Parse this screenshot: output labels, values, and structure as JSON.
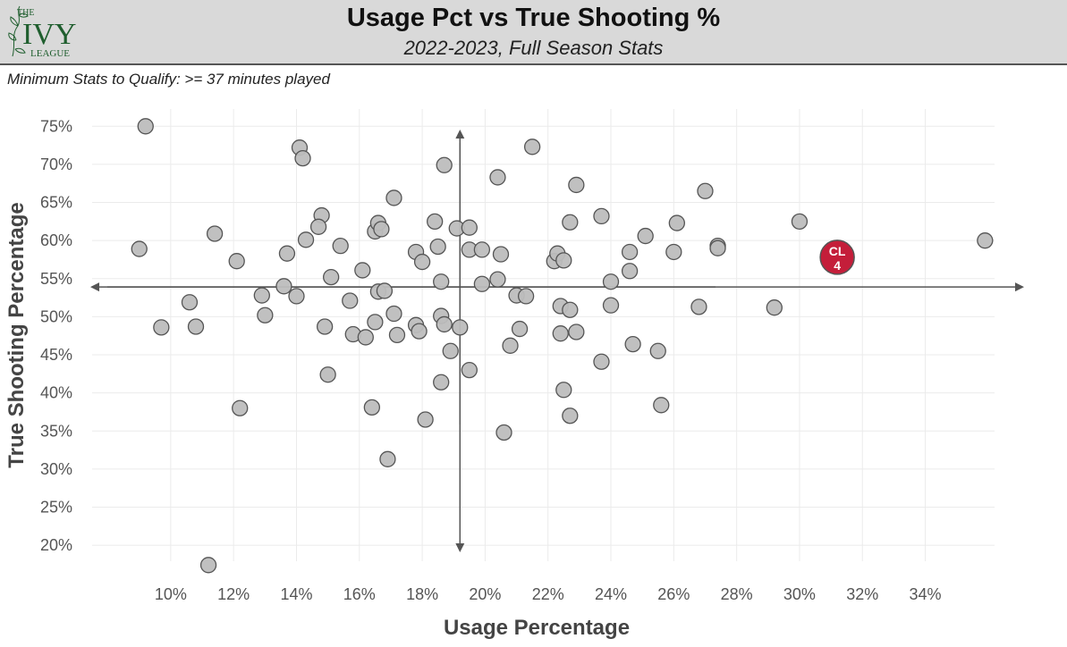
{
  "header": {
    "title": "Usage Pct vs True Shooting %",
    "subtitle": "2022-2023, Full Season Stats",
    "logo": {
      "top": "THE",
      "main": "IVY",
      "bottom": "LEAGUE"
    }
  },
  "note": "Minimum Stats to Qualify: >= 37 minutes played",
  "colors": {
    "point_fill": "#bdbdbd",
    "point_stroke": "#555555",
    "highlight_fill": "#c41e3a",
    "logo_green": "#1f5e2e"
  },
  "chart_data": {
    "type": "scatter",
    "xlabel": "Usage Percentage",
    "ylabel": "True Shooting Percentage",
    "x_unit": "percent",
    "y_unit": "percent",
    "xlim": [
      7.5,
      37
    ],
    "ylim": [
      16.5,
      77.5
    ],
    "x_ticks": [
      "10%",
      "12%",
      "14%",
      "16%",
      "18%",
      "20%",
      "22%",
      "24%",
      "26%",
      "28%",
      "30%",
      "32%",
      "34%"
    ],
    "y_ticks": [
      "20%",
      "25%",
      "30%",
      "35%",
      "40%",
      "45%",
      "50%",
      "55%",
      "60%",
      "65%",
      "70%",
      "75%"
    ],
    "grid": true,
    "reference_lines": {
      "x": 19.2,
      "y": 53.9
    },
    "points": [
      [
        9.2,
        75.0
      ],
      [
        9.0,
        58.9
      ],
      [
        9.7,
        48.6
      ],
      [
        10.6,
        51.9
      ],
      [
        10.8,
        48.7
      ],
      [
        11.2,
        17.4
      ],
      [
        11.4,
        60.9
      ],
      [
        12.1,
        57.3
      ],
      [
        12.2,
        38.0
      ],
      [
        12.9,
        52.8
      ],
      [
        13.0,
        50.2
      ],
      [
        13.7,
        58.3
      ],
      [
        13.6,
        54.0
      ],
      [
        14.0,
        52.7
      ],
      [
        14.1,
        72.2
      ],
      [
        14.2,
        70.8
      ],
      [
        14.3,
        60.1
      ],
      [
        14.8,
        63.3
      ],
      [
        14.7,
        61.8
      ],
      [
        14.9,
        48.7
      ],
      [
        15.0,
        42.4
      ],
      [
        15.1,
        55.2
      ],
      [
        15.4,
        59.3
      ],
      [
        15.7,
        52.1
      ],
      [
        15.8,
        47.7
      ],
      [
        16.1,
        56.1
      ],
      [
        16.2,
        47.3
      ],
      [
        16.4,
        38.1
      ],
      [
        16.5,
        61.2
      ],
      [
        16.6,
        62.3
      ],
      [
        16.7,
        61.5
      ],
      [
        16.6,
        53.3
      ],
      [
        16.5,
        49.3
      ],
      [
        16.8,
        53.4
      ],
      [
        16.9,
        31.3
      ],
      [
        17.1,
        65.6
      ],
      [
        17.1,
        50.4
      ],
      [
        17.2,
        47.6
      ],
      [
        17.8,
        58.5
      ],
      [
        17.8,
        48.9
      ],
      [
        17.9,
        48.1
      ],
      [
        18.0,
        57.2
      ],
      [
        18.1,
        36.5
      ],
      [
        18.4,
        62.5
      ],
      [
        18.5,
        59.2
      ],
      [
        18.6,
        54.6
      ],
      [
        18.6,
        50.1
      ],
      [
        18.7,
        49.0
      ],
      [
        18.6,
        41.4
      ],
      [
        18.7,
        69.9
      ],
      [
        18.9,
        45.5
      ],
      [
        19.1,
        61.6
      ],
      [
        19.2,
        48.6
      ],
      [
        19.5,
        61.7
      ],
      [
        19.5,
        58.8
      ],
      [
        19.5,
        43.0
      ],
      [
        19.9,
        58.8
      ],
      [
        19.9,
        54.3
      ],
      [
        20.4,
        68.3
      ],
      [
        20.4,
        54.9
      ],
      [
        20.5,
        58.2
      ],
      [
        20.6,
        34.8
      ],
      [
        20.8,
        46.2
      ],
      [
        21.0,
        52.8
      ],
      [
        21.1,
        48.4
      ],
      [
        21.3,
        52.7
      ],
      [
        21.5,
        72.3
      ],
      [
        22.2,
        57.3
      ],
      [
        22.3,
        58.3
      ],
      [
        22.4,
        51.4
      ],
      [
        22.4,
        47.8
      ],
      [
        22.5,
        57.4
      ],
      [
        22.5,
        40.4
      ],
      [
        22.7,
        62.4
      ],
      [
        22.7,
        50.9
      ],
      [
        22.7,
        37.0
      ],
      [
        22.9,
        67.3
      ],
      [
        22.9,
        48.0
      ],
      [
        23.7,
        63.2
      ],
      [
        23.7,
        44.1
      ],
      [
        24.0,
        54.6
      ],
      [
        24.0,
        51.5
      ],
      [
        24.6,
        58.5
      ],
      [
        24.6,
        56.0
      ],
      [
        24.7,
        46.4
      ],
      [
        25.1,
        60.6
      ],
      [
        25.5,
        45.5
      ],
      [
        25.6,
        38.4
      ],
      [
        26.0,
        58.5
      ],
      [
        26.1,
        62.3
      ],
      [
        26.8,
        51.3
      ],
      [
        27.0,
        66.5
      ],
      [
        27.4,
        59.3
      ],
      [
        27.4,
        59.0
      ],
      [
        29.2,
        51.2
      ],
      [
        30.0,
        62.5
      ],
      [
        35.9,
        60.0
      ]
    ],
    "highlight": {
      "x": 31.2,
      "y": 57.8,
      "label_line1": "CL",
      "label_line2": "4"
    }
  }
}
